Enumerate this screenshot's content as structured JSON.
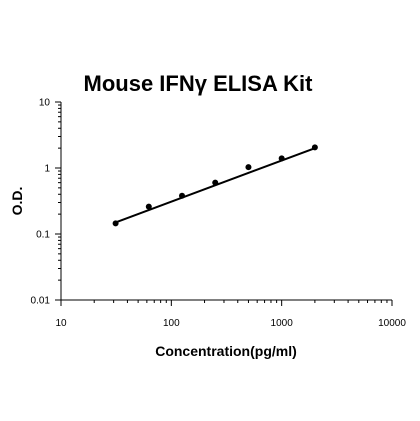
{
  "chart_data": {
    "type": "scatter",
    "title": "Mouse IFNγ ELISA Kit",
    "xlabel": "Concentration(pg/ml)",
    "ylabel": "O.D.",
    "xscale": "log",
    "yscale": "log",
    "xlim": [
      10,
      10000
    ],
    "ylim": [
      0.01,
      10
    ],
    "xticks": [
      "10",
      "100",
      "1000",
      "10000"
    ],
    "yticks": [
      "0.01",
      "0.1",
      "1",
      "10"
    ],
    "grid": false,
    "legend": "none",
    "series": [
      {
        "x": [
          31.25,
          62.5,
          125,
          250,
          500,
          1000,
          2000
        ],
        "y": [
          0.145,
          0.26,
          0.38,
          0.6,
          1.03,
          1.4,
          2.05
        ]
      }
    ],
    "fit_line": {
      "x": [
        31.25,
        2000
      ],
      "y": [
        0.15,
        2.0
      ]
    },
    "colors": {
      "axis": "#000000",
      "points": "#000000",
      "line": "#000000"
    }
  }
}
